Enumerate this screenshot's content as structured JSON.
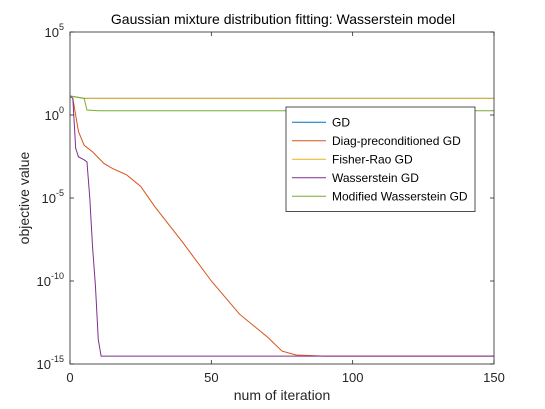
{
  "chart_data": {
    "type": "line",
    "title": "Gaussian mixture distribution fitting: Wasserstein model",
    "xlabel": "num of iteration",
    "ylabel": "objective value",
    "xlim": [
      0,
      150
    ],
    "ylim": [
      1e-15,
      100000.0
    ],
    "yscale": "log",
    "grid": false,
    "legend_position": "right",
    "xticks": [
      0,
      50,
      100,
      150
    ],
    "yticks": [
      {
        "value": 1e-15,
        "base": "10",
        "exp": "-15"
      },
      {
        "value": 1e-10,
        "base": "10",
        "exp": "-10"
      },
      {
        "value": 1e-05,
        "base": "10",
        "exp": "-5"
      },
      {
        "value": 1,
        "base": "10",
        "exp": "0"
      },
      {
        "value": 100000.0,
        "base": "10",
        "exp": "5"
      }
    ],
    "series": [
      {
        "name": "GD",
        "color": "#0072bd",
        "points": [
          [
            0,
            14
          ],
          [
            5,
            10
          ],
          [
            20,
            10
          ],
          [
            150,
            10
          ]
        ]
      },
      {
        "name": "Diag-preconditioned GD",
        "color": "#d95319",
        "points": [
          [
            0,
            14
          ],
          [
            1,
            10
          ],
          [
            3,
            0.1
          ],
          [
            5,
            0.015
          ],
          [
            8,
            0.006
          ],
          [
            12,
            0.0012
          ],
          [
            15,
            0.0006
          ],
          [
            20,
            0.00025
          ],
          [
            25,
            5e-05
          ],
          [
            30,
            3e-06
          ],
          [
            40,
            2e-08
          ],
          [
            50,
            1e-10
          ],
          [
            60,
            1e-12
          ],
          [
            70,
            4e-14
          ],
          [
            75,
            6e-15
          ],
          [
            80,
            3.5e-15
          ],
          [
            90,
            3e-15
          ],
          [
            150,
            3e-15
          ]
        ]
      },
      {
        "name": "Fisher-Rao GD",
        "color": "#edb120",
        "points": [
          [
            0,
            14
          ],
          [
            5,
            10
          ],
          [
            20,
            10
          ],
          [
            150,
            10
          ]
        ]
      },
      {
        "name": "Wasserstein GD",
        "color": "#7e2f8e",
        "points": [
          [
            0,
            14
          ],
          [
            1,
            10
          ],
          [
            2,
            0.01
          ],
          [
            3,
            0.003
          ],
          [
            5,
            0.002
          ],
          [
            6,
            0.0015
          ],
          [
            7,
            1e-05
          ],
          [
            8,
            1e-08
          ],
          [
            9,
            5e-11
          ],
          [
            10,
            3e-14
          ],
          [
            11,
            3e-15
          ],
          [
            150,
            3e-15
          ]
        ]
      },
      {
        "name": "Modified Wasserstein GD",
        "color": "#77ac30",
        "points": [
          [
            0,
            14
          ],
          [
            5,
            10
          ],
          [
            6,
            2
          ],
          [
            10,
            1.8
          ],
          [
            150,
            1.8
          ]
        ]
      }
    ]
  }
}
